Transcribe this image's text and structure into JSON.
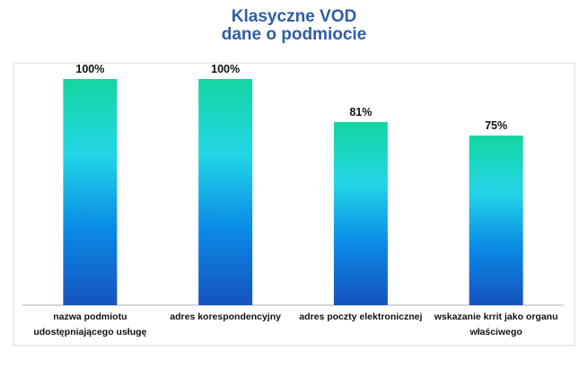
{
  "chart_data": {
    "type": "bar",
    "title": "Klasyczne VOD",
    "subtitle": "dane o podmiocie",
    "categories": [
      "nazwa podmiotu udostępniającego usługę",
      "adres korespondencyjny",
      "adres poczty elektronicznej",
      "wskazanie krrit jako organu właściwego"
    ],
    "values": [
      100,
      100,
      81,
      75
    ],
    "value_labels": [
      "100%",
      "100%",
      "81%",
      "75%"
    ],
    "gradient": [
      "#14d6a0",
      "#22d6e6",
      "#0a8ae6",
      "#1552bf"
    ],
    "ylim": [
      0,
      100
    ]
  }
}
